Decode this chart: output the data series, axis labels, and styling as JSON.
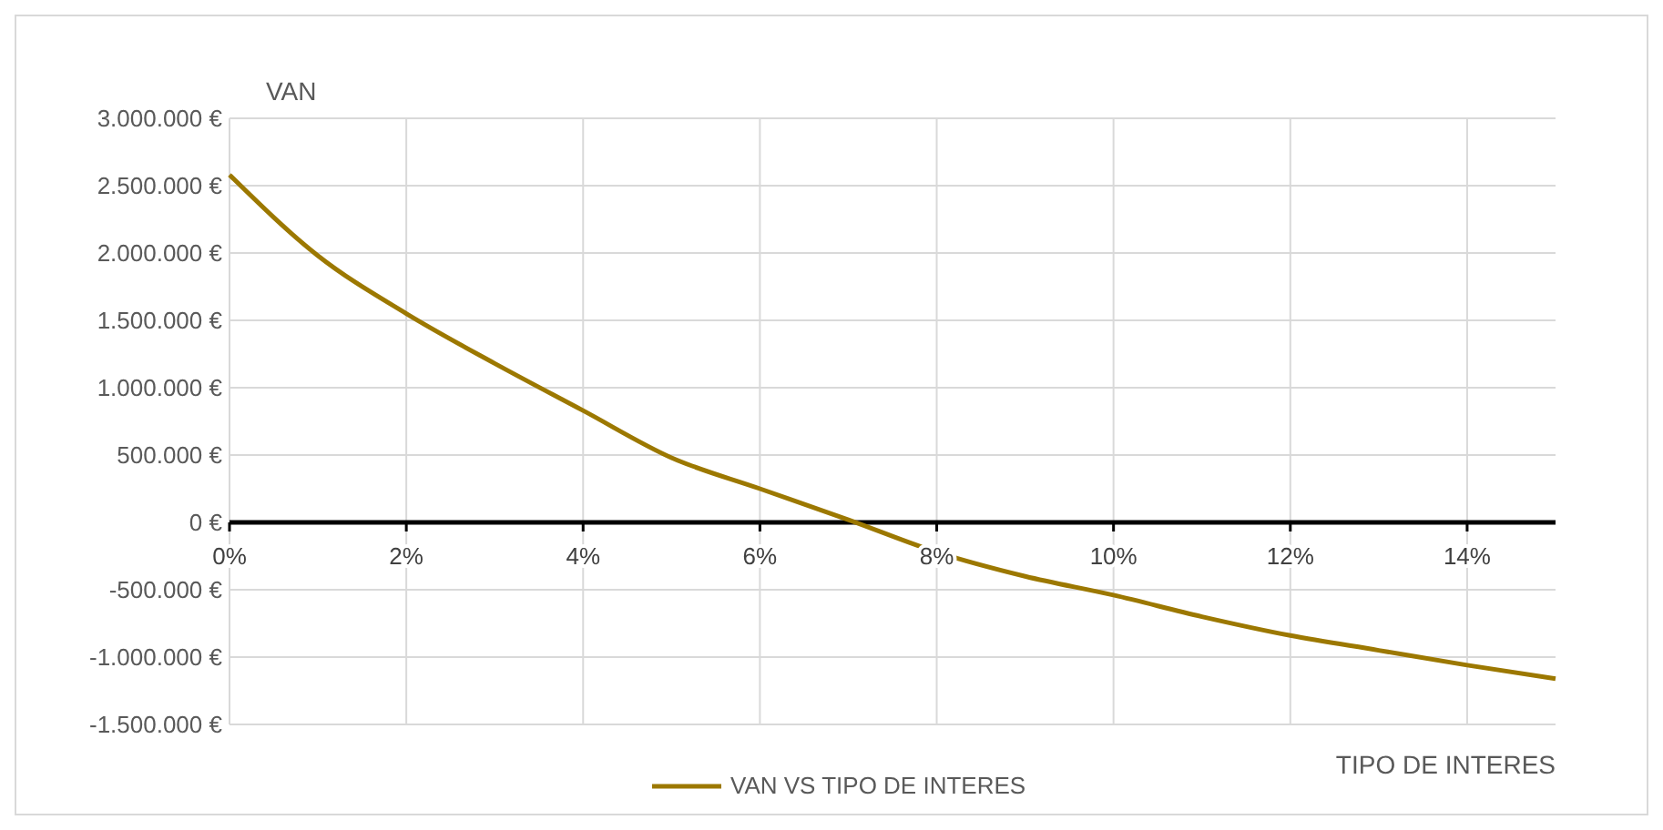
{
  "chart_data": {
    "type": "line",
    "xlabel": "TIPO DE INTERES",
    "ylabel": "VAN",
    "x": [
      0,
      1,
      2,
      3,
      4,
      5,
      6,
      7,
      8,
      9,
      10,
      11,
      12,
      13,
      14,
      15
    ],
    "series": [
      {
        "name": "VAN VS TIPO DE INTERES",
        "color": "#9c7800",
        "values": [
          2580000,
          1980000,
          1550000,
          1180000,
          830000,
          480000,
          250000,
          20000,
          -220000,
          -400000,
          -540000,
          -700000,
          -840000,
          -950000,
          -1060000,
          -1160000
        ]
      }
    ],
    "xlim": [
      0,
      15
    ],
    "xticks": [
      {
        "value": 0,
        "label": "0%"
      },
      {
        "value": 2,
        "label": "2%"
      },
      {
        "value": 4,
        "label": "4%"
      },
      {
        "value": 6,
        "label": "6%"
      },
      {
        "value": 8,
        "label": "8%"
      },
      {
        "value": 10,
        "label": "10%"
      },
      {
        "value": 12,
        "label": "12%"
      },
      {
        "value": 14,
        "label": "14%"
      }
    ],
    "ylim": [
      -1500000,
      3000000
    ],
    "yticks": [
      {
        "value": -1500000,
        "label": "-1.500.000 €"
      },
      {
        "value": -1000000,
        "label": "-1.000.000 €"
      },
      {
        "value": -500000,
        "label": "-500.000 €"
      },
      {
        "value": 0,
        "label": "0 €"
      },
      {
        "value": 500000,
        "label": "500.000 €"
      },
      {
        "value": 1000000,
        "label": "1.000.000 €"
      },
      {
        "value": 1500000,
        "label": "1.500.000 €"
      },
      {
        "value": 2000000,
        "label": "2.000.000 €"
      },
      {
        "value": 2500000,
        "label": "2.500.000 €"
      },
      {
        "value": 3000000,
        "label": "3.000.000 €"
      }
    ],
    "grid": true,
    "legend": "bottom",
    "marker": "none",
    "line_style": "solid"
  }
}
